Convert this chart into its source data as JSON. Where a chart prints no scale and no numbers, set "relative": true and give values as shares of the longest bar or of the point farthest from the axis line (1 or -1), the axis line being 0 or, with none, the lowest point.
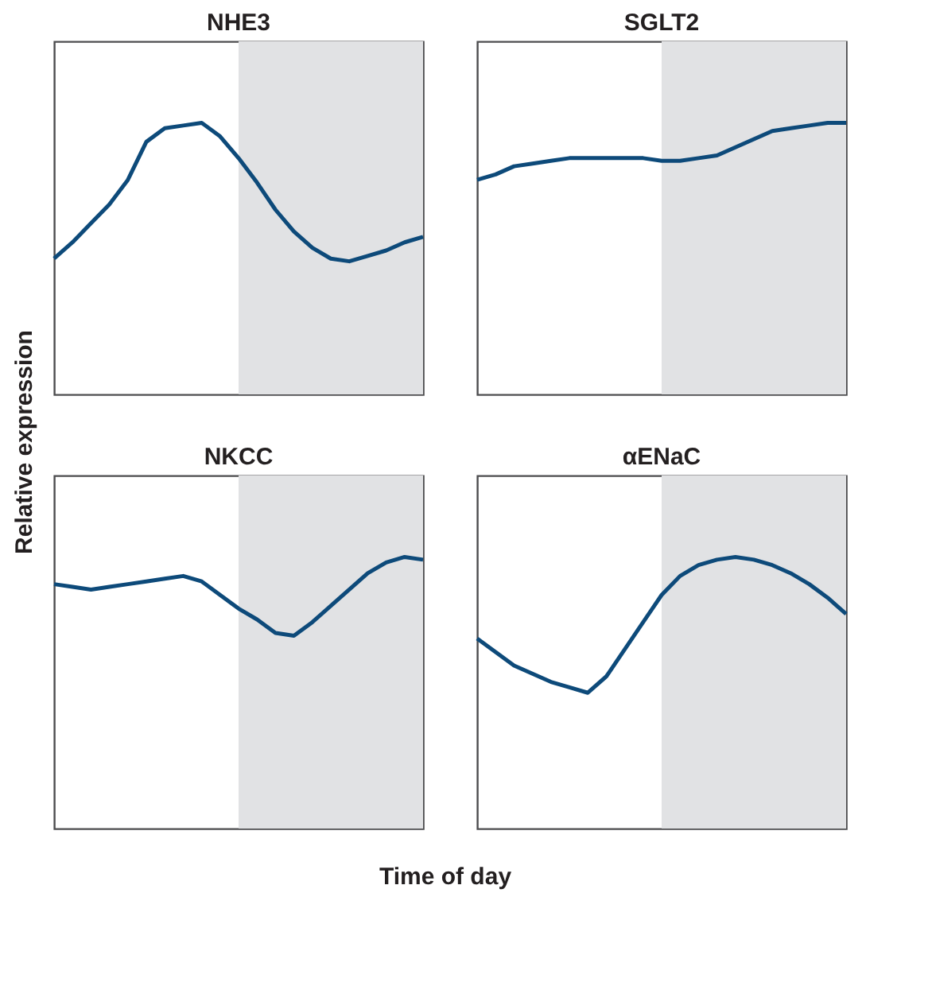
{
  "chart_data": [
    {
      "type": "line",
      "title": "NHE3",
      "ylabel": "Relative expression",
      "relative": true,
      "tick_labels": false,
      "grid": false,
      "categories": [
        null,
        null,
        null,
        null,
        null,
        null,
        null,
        null,
        null,
        null,
        null,
        null,
        null,
        null,
        null,
        null,
        null,
        null,
        null,
        null,
        null
      ],
      "series": [
        {
          "color": "#0d4a7a",
          "values": [
            0.5,
            0.56,
            0.63,
            0.7,
            0.79,
            0.93,
            0.98,
            0.99,
            1.0,
            0.95,
            0.87,
            0.78,
            0.68,
            0.6,
            0.54,
            0.5,
            0.49,
            0.51,
            0.53,
            0.56,
            0.58
          ]
        }
      ]
    },
    {
      "type": "line",
      "title": "SGLT2",
      "relative": true,
      "tick_labels": false,
      "grid": false,
      "categories": [
        null,
        null,
        null,
        null,
        null,
        null,
        null,
        null,
        null,
        null,
        null,
        null,
        null,
        null,
        null,
        null,
        null,
        null,
        null,
        null,
        null
      ],
      "series": [
        {
          "color": "#0d4a7a",
          "values": [
            0.79,
            0.81,
            0.84,
            0.85,
            0.86,
            0.87,
            0.87,
            0.87,
            0.87,
            0.87,
            0.86,
            0.86,
            0.87,
            0.88,
            0.91,
            0.94,
            0.97,
            0.98,
            0.99,
            1.0,
            1.0
          ]
        }
      ]
    },
    {
      "type": "line",
      "title": "NKCC",
      "relative": true,
      "tick_labels": false,
      "grid": false,
      "categories": [
        null,
        null,
        null,
        null,
        null,
        null,
        null,
        null,
        null,
        null,
        null,
        null,
        null,
        null,
        null,
        null,
        null,
        null,
        null,
        null,
        null
      ],
      "series": [
        {
          "color": "#0d4a7a",
          "values": [
            0.9,
            0.89,
            0.88,
            0.89,
            0.9,
            0.91,
            0.92,
            0.93,
            0.91,
            0.86,
            0.81,
            0.77,
            0.72,
            0.71,
            0.76,
            0.82,
            0.88,
            0.94,
            0.98,
            1.0,
            0.99
          ]
        }
      ]
    },
    {
      "type": "line",
      "title": "αENaC",
      "xlabel": "Time of day",
      "relative": true,
      "tick_labels": false,
      "grid": false,
      "categories": [
        null,
        null,
        null,
        null,
        null,
        null,
        null,
        null,
        null,
        null,
        null,
        null,
        null,
        null,
        null,
        null,
        null,
        null,
        null,
        null,
        null
      ],
      "series": [
        {
          "color": "#0d4a7a",
          "values": [
            0.7,
            0.65,
            0.6,
            0.57,
            0.54,
            0.52,
            0.5,
            0.56,
            0.66,
            0.76,
            0.86,
            0.93,
            0.97,
            0.99,
            1.0,
            0.99,
            0.97,
            0.94,
            0.9,
            0.85,
            0.79
          ]
        }
      ]
    }
  ]
}
